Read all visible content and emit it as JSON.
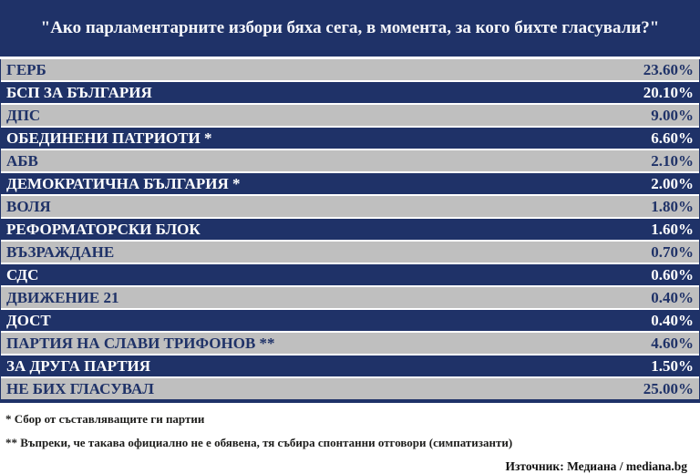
{
  "title": "\"Ако парламентарните избори бяха сега, в момента, за кого бихте гласували?\"",
  "colors": {
    "navy": "#1f3268",
    "gray_row": "#bfbfbf",
    "white_text": "#ffffff",
    "footnote_text": "#1d1d1b"
  },
  "table": {
    "rows": [
      {
        "label": "ГЕРБ",
        "value": "23.60%"
      },
      {
        "label": "БСП ЗА БЪЛГАРИЯ",
        "value": "20.10%"
      },
      {
        "label": "ДПС",
        "value": "9.00%"
      },
      {
        "label": "ОБЕДИНЕНИ ПАТРИОТИ *",
        "value": "6.60%"
      },
      {
        "label": "АБВ",
        "value": "2.10%"
      },
      {
        "label": "ДЕМОКРАТИЧНА БЪЛГАРИЯ *",
        "value": "2.00%"
      },
      {
        "label": "ВОЛЯ",
        "value": "1.80%"
      },
      {
        "label": "РЕФОРМАТОРСКИ БЛОК",
        "value": "1.60%"
      },
      {
        "label": "ВЪЗРАЖДАНЕ",
        "value": "0.70%"
      },
      {
        "label": "СДС",
        "value": "0.60%"
      },
      {
        "label": "ДВИЖЕНИЕ 21",
        "value": "0.40%"
      },
      {
        "label": "ДОСТ",
        "value": "0.40%"
      },
      {
        "label": "ПАРТИЯ НА СЛАВИ ТРИФОНОВ **",
        "value": "4.60%"
      },
      {
        "label": "ЗА ДРУГА ПАРТИЯ",
        "value": "1.50%"
      },
      {
        "label": "НЕ БИХ ГЛАСУВАЛ",
        "value": "25.00%"
      }
    ]
  },
  "footnotes": {
    "first": "* Сбор от съставляващите ги партии",
    "second": "** Въпреки, че такава официално не е обявена, тя събира спонтанни отговори (симпатизанти)"
  },
  "source": "Източник: Медиана / mediana.bg",
  "chart_data": {
    "type": "table",
    "title": "\"Ако парламентарните избори бяха сега, в момента, за кого бихте гласували?\"",
    "categories": [
      "ГЕРБ",
      "БСП ЗА БЪЛГАРИЯ",
      "ДПС",
      "ОБЕДИНЕНИ ПАТРИОТИ *",
      "АБВ",
      "ДЕМОКРАТИЧНА БЪЛГАРИЯ *",
      "ВОЛЯ",
      "РЕФОРМАТОРСКИ БЛОК",
      "ВЪЗРАЖДАНЕ",
      "СДС",
      "ДВИЖЕНИЕ 21",
      "ДОСТ",
      "ПАРТИЯ НА СЛАВИ ТРИФОНОВ **",
      "ЗА ДРУГА ПАРТИЯ",
      "НЕ БИХ ГЛАСУВАЛ"
    ],
    "values": [
      23.6,
      20.1,
      9.0,
      6.6,
      2.1,
      2.0,
      1.8,
      1.6,
      0.7,
      0.6,
      0.4,
      0.4,
      4.6,
      1.5,
      25.0
    ],
    "unit": "%",
    "annotations": [
      "* Сбор от съставляващите ги партии",
      "** Въпреки, че такава официално не е обявена, тя събира спонтанни отговори (симпатизанти)"
    ],
    "source": "Източник: Медиана / mediana.bg",
    "layout_hints": {
      "row_striping": [
        "#bfbfbf",
        "#1f3268"
      ],
      "value_alignment": "right",
      "legend": "none",
      "grid": "off"
    }
  }
}
